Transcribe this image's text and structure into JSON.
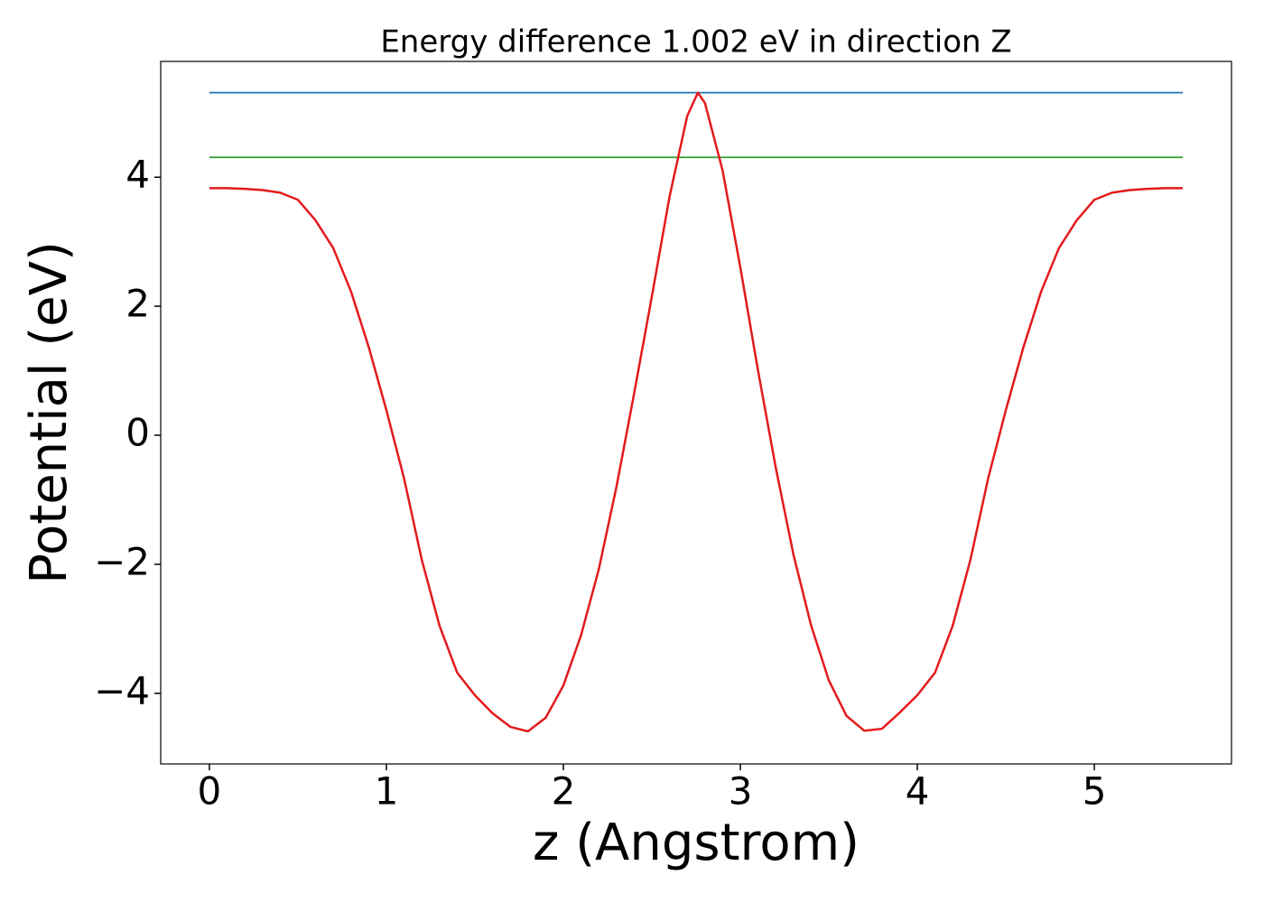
{
  "chart_data": {
    "type": "line",
    "title": "Energy difference 1.002 eV in direction Z",
    "xlabel": "z (Angstrom)",
    "ylabel": "Potential (eV)",
    "xlim": [
      -0.275,
      5.775
    ],
    "ylim": [
      -5.095,
      5.795
    ],
    "xticks": [
      0,
      1,
      2,
      3,
      4,
      5
    ],
    "yticks": [
      {
        "value": -4,
        "label": "−4"
      },
      {
        "value": -2,
        "label": "−2"
      },
      0,
      2,
      4
    ],
    "grid": false,
    "series": [
      {
        "color": "#1f77b4",
        "x": [
          0,
          5.5
        ],
        "values": [
          5.31,
          5.31
        ]
      },
      {
        "color": "#2ca02c",
        "x": [
          0,
          5.5
        ],
        "values": [
          4.308,
          4.308
        ]
      },
      {
        "color": "#e31a1c",
        "x": [
          0,
          0.1,
          0.2,
          0.3,
          0.4,
          0.5,
          0.6,
          0.7,
          0.8,
          0.9,
          1.0,
          1.1,
          1.2,
          1.3,
          1.4,
          1.5,
          1.6,
          1.7,
          1.8,
          1.9,
          2.0,
          2.1,
          2.2,
          2.3,
          2.4,
          2.5,
          2.6,
          2.7,
          2.76,
          2.8,
          2.9,
          3.0,
          3.1,
          3.2,
          3.3,
          3.4,
          3.5,
          3.6,
          3.7,
          3.8,
          3.9,
          4.0,
          4.1,
          4.2,
          4.3,
          4.4,
          4.5,
          4.6,
          4.7,
          4.8,
          4.9,
          5.0,
          5.1,
          5.2,
          5.3,
          5.4,
          5.5
        ],
        "values": [
          3.83,
          3.83,
          3.82,
          3.8,
          3.76,
          3.65,
          3.33,
          2.9,
          2.23,
          1.37,
          0.39,
          -0.67,
          -1.93,
          -2.95,
          -3.68,
          -4.03,
          -4.31,
          -4.52,
          -4.59,
          -4.38,
          -3.88,
          -3.1,
          -2.08,
          -0.8,
          0.65,
          2.15,
          3.7,
          4.95,
          5.31,
          5.15,
          4.1,
          2.6,
          1.0,
          -0.5,
          -1.85,
          -2.95,
          -3.8,
          -4.35,
          -4.58,
          -4.55,
          -4.3,
          -4.03,
          -3.68,
          -2.95,
          -1.93,
          -0.67,
          0.39,
          1.37,
          2.23,
          2.9,
          3.33,
          3.65,
          3.76,
          3.8,
          3.82,
          3.83,
          3.83
        ]
      }
    ]
  }
}
